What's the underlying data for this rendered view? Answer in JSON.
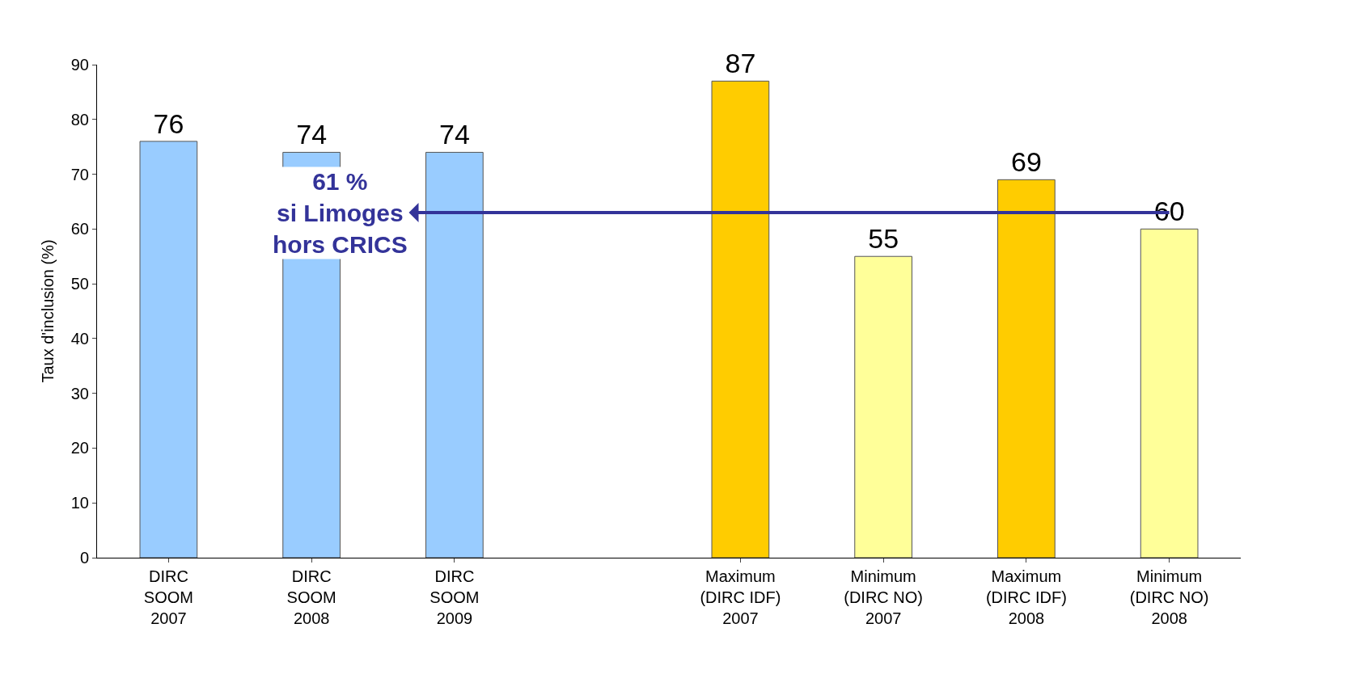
{
  "chart_data": {
    "type": "bar",
    "categories": [
      "DIRC\nSOOM\n2007",
      "DIRC\nSOOM\n2008",
      "DIRC\nSOOM\n2009",
      null,
      "Maximum\n(DIRC IDF)\n2007",
      "Minimum\n(DIRC NO)\n2007",
      "Maximum\n(DIRC IDF)\n2008",
      "Minimum\n(DIRC NO)\n2008"
    ],
    "values": [
      76,
      74,
      74,
      null,
      87,
      55,
      69,
      60
    ],
    "colors": [
      "#99ccff",
      "#99ccff",
      "#99ccff",
      "#99ccff",
      "#ffcc00",
      "#ffff99",
      "#ffcc00",
      "#ffff99"
    ],
    "ylabel": "Taux d'inclusion (%)",
    "ylim": [
      0,
      90
    ],
    "yticks": [
      0,
      10,
      20,
      30,
      40,
      50,
      60,
      70,
      80,
      90
    ],
    "data_labels": true,
    "grid": false,
    "legend": false,
    "annotations": [
      "61 %\nsi Limoges\nhors CRICS"
    ]
  }
}
